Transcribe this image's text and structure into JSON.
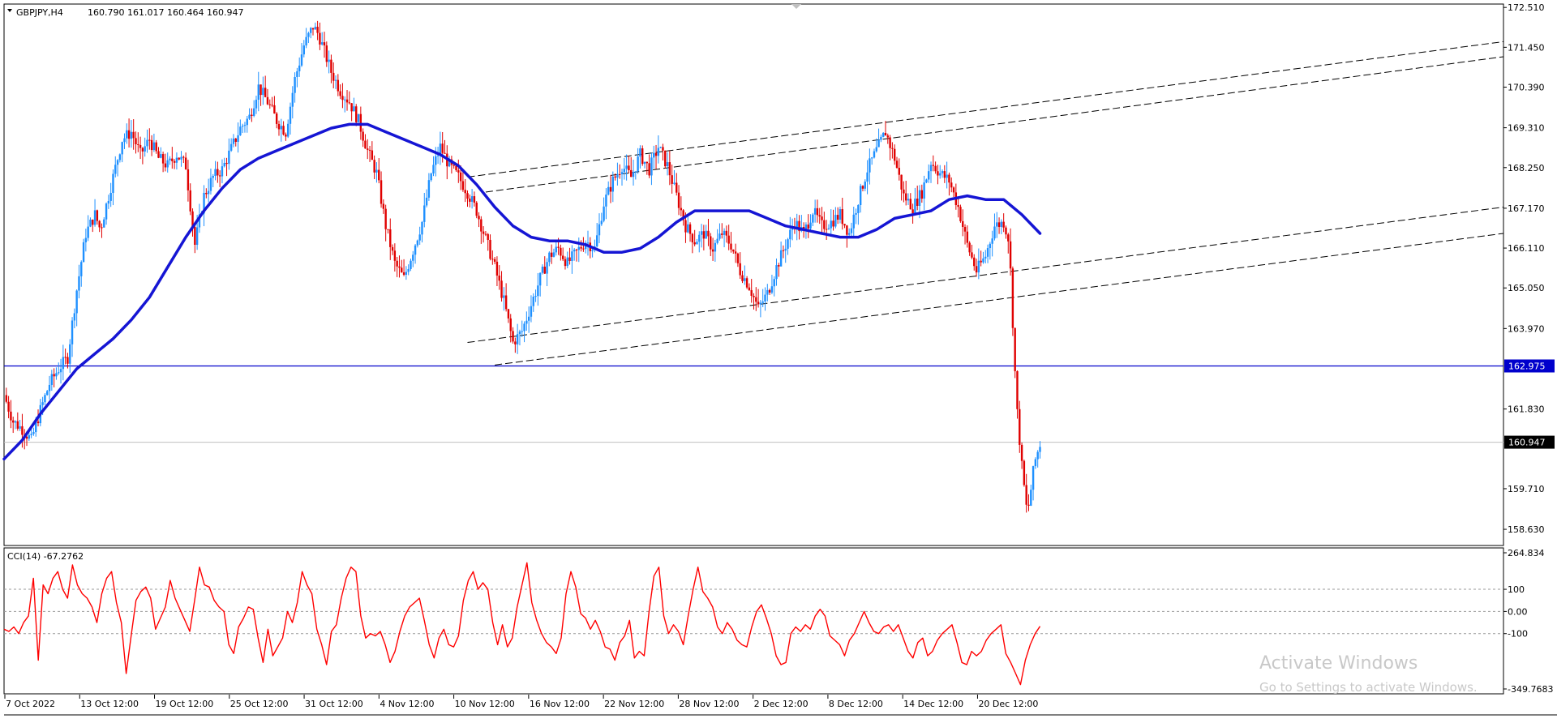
{
  "header": {
    "symbol": "GBPJPY,H4",
    "ohlc": "160.790 161.017 160.464 160.947"
  },
  "indicator": {
    "label": "CCI(14) -67.2762"
  },
  "watermark": {
    "line1": "Activate Windows",
    "line2": "Go to Settings to activate Windows."
  },
  "chart_data": [
    {
      "type": "candlestick",
      "symbol": "GBPJPY",
      "timeframe": "H4",
      "price_axis_ticks": [
        "172.510",
        "171.450",
        "170.390",
        "169.310",
        "168.250",
        "167.170",
        "166.110",
        "165.050",
        "163.970",
        "161.830",
        "159.710",
        "158.630"
      ],
      "ylim": [
        158.2,
        172.6
      ],
      "current_price": 160.947,
      "current_price_label": "160.947",
      "horizontal_level": 162.975,
      "horizontal_level_label": "162.975",
      "time_axis_labels": [
        "7 Oct 2022",
        "13 Oct 12:00",
        "19 Oct 12:00",
        "25 Oct 12:00",
        "31 Oct 12:00",
        "4 Nov 12:00",
        "10 Nov 12:00",
        "16 Nov 12:00",
        "22 Nov 12:00",
        "28 Nov 12:00",
        "2 Dec 12:00",
        "8 Dec 12:00",
        "14 Dec 12:00",
        "20 Dec 12:00"
      ],
      "close_path": [
        [
          0,
          162.2
        ],
        [
          0.5,
          161.5
        ],
        [
          1,
          161.3
        ],
        [
          1.5,
          161.0
        ],
        [
          2,
          161.8
        ],
        [
          2.5,
          162.5
        ],
        [
          3,
          162.9
        ],
        [
          3.5,
          163.2
        ],
        [
          4,
          165.0
        ],
        [
          4.5,
          166.5
        ],
        [
          5,
          167.0
        ],
        [
          5.3,
          166.6
        ],
        [
          6,
          168.0
        ],
        [
          6.5,
          169.0
        ],
        [
          7,
          169.2
        ],
        [
          7.5,
          168.6
        ],
        [
          8,
          169.0
        ],
        [
          8.5,
          168.5
        ],
        [
          9,
          168.3
        ],
        [
          9.5,
          168.6
        ],
        [
          10,
          168.3
        ],
        [
          10.5,
          166.2
        ],
        [
          11,
          167.5
        ],
        [
          11.5,
          168.0
        ],
        [
          12,
          168.2
        ],
        [
          13,
          169.3
        ],
        [
          13.5,
          169.6
        ],
        [
          14,
          170.4
        ],
        [
          14.5,
          170.0
        ],
        [
          15,
          169.5
        ],
        [
          15.5,
          169.2
        ],
        [
          16,
          170.6
        ],
        [
          16.5,
          171.5
        ],
        [
          17,
          172.0
        ],
        [
          17.3,
          171.8
        ],
        [
          18,
          170.8
        ],
        [
          18.5,
          170.3
        ],
        [
          19,
          170.0
        ],
        [
          19.5,
          169.5
        ],
        [
          20,
          168.7
        ],
        [
          20.5,
          168.1
        ],
        [
          21,
          166.7
        ],
        [
          21.5,
          165.7
        ],
        [
          22,
          165.3
        ],
        [
          23,
          166.8
        ],
        [
          23.5,
          168.1
        ],
        [
          24,
          168.8
        ],
        [
          24.5,
          168.3
        ],
        [
          25,
          168.0
        ],
        [
          25.5,
          167.6
        ],
        [
          26,
          167.1
        ],
        [
          27,
          165.6
        ],
        [
          27.5,
          164.7
        ],
        [
          28,
          163.6
        ],
        [
          28.5,
          163.9
        ],
        [
          29,
          164.6
        ],
        [
          29.5,
          165.3
        ],
        [
          30,
          165.9
        ],
        [
          30.5,
          166.1
        ],
        [
          31,
          165.7
        ],
        [
          31.5,
          166.0
        ],
        [
          32,
          166.3
        ],
        [
          32.5,
          166.1
        ],
        [
          33,
          167.3
        ],
        [
          33.5,
          167.9
        ],
        [
          34,
          168.3
        ],
        [
          34.5,
          168.0
        ],
        [
          35,
          168.6
        ],
        [
          35.5,
          168.2
        ],
        [
          36,
          168.8
        ],
        [
          36.5,
          168.3
        ],
        [
          37,
          167.5
        ],
        [
          37.5,
          166.7
        ],
        [
          38,
          166.3
        ],
        [
          38.5,
          166.5
        ],
        [
          39,
          166.1
        ],
        [
          39.5,
          166.5
        ],
        [
          40,
          166.2
        ],
        [
          40.5,
          165.5
        ],
        [
          41,
          165.1
        ],
        [
          41.5,
          164.5
        ],
        [
          42,
          164.9
        ],
        [
          42.5,
          165.6
        ],
        [
          43,
          166.2
        ],
        [
          43.5,
          166.8
        ],
        [
          44,
          166.5
        ],
        [
          44.5,
          167.1
        ],
        [
          45,
          166.7
        ],
        [
          45.5,
          166.8
        ],
        [
          46,
          167.0
        ],
        [
          46.5,
          166.5
        ],
        [
          47,
          167.4
        ],
        [
          47.5,
          168.2
        ],
        [
          48,
          168.7
        ],
        [
          48.5,
          169.2
        ],
        [
          49,
          168.5
        ],
        [
          49.5,
          167.5
        ],
        [
          50,
          167.2
        ],
        [
          50.5,
          167.6
        ],
        [
          51,
          168.4
        ],
        [
          51.5,
          168.1
        ],
        [
          52,
          167.9
        ],
        [
          52.5,
          167.2
        ],
        [
          53,
          166.2
        ],
        [
          53.5,
          165.5
        ],
        [
          54,
          165.9
        ],
        [
          54.5,
          166.7
        ],
        [
          55,
          166.8
        ],
        [
          55.3,
          166.3
        ],
        [
          55.7,
          162.0
        ],
        [
          56,
          160.3
        ],
        [
          56.3,
          159.0
        ],
        [
          56.7,
          160.4
        ],
        [
          57,
          160.9
        ]
      ],
      "moving_average_path": [
        [
          0,
          160.5
        ],
        [
          1,
          161.0
        ],
        [
          2,
          161.7
        ],
        [
          3,
          162.3
        ],
        [
          4,
          162.9
        ],
        [
          5,
          163.3
        ],
        [
          6,
          163.7
        ],
        [
          7,
          164.2
        ],
        [
          8,
          164.8
        ],
        [
          9,
          165.6
        ],
        [
          10,
          166.4
        ],
        [
          11,
          167.1
        ],
        [
          12,
          167.7
        ],
        [
          13,
          168.2
        ],
        [
          14,
          168.5
        ],
        [
          15,
          168.7
        ],
        [
          16,
          168.9
        ],
        [
          17,
          169.1
        ],
        [
          18,
          169.3
        ],
        [
          19,
          169.4
        ],
        [
          20,
          169.4
        ],
        [
          21,
          169.2
        ],
        [
          22,
          169.0
        ],
        [
          23,
          168.8
        ],
        [
          24,
          168.6
        ],
        [
          25,
          168.3
        ],
        [
          26,
          167.8
        ],
        [
          27,
          167.2
        ],
        [
          28,
          166.7
        ],
        [
          29,
          166.4
        ],
        [
          30,
          166.3
        ],
        [
          31,
          166.3
        ],
        [
          32,
          166.2
        ],
        [
          33,
          166.0
        ],
        [
          34,
          166.0
        ],
        [
          35,
          166.1
        ],
        [
          36,
          166.4
        ],
        [
          37,
          166.8
        ],
        [
          38,
          167.1
        ],
        [
          39,
          167.1
        ],
        [
          40,
          167.1
        ],
        [
          41,
          167.1
        ],
        [
          42,
          166.9
        ],
        [
          43,
          166.7
        ],
        [
          44,
          166.6
        ],
        [
          45,
          166.5
        ],
        [
          46,
          166.4
        ],
        [
          47,
          166.4
        ],
        [
          48,
          166.6
        ],
        [
          49,
          166.9
        ],
        [
          50,
          167.0
        ],
        [
          51,
          167.1
        ],
        [
          52,
          167.4
        ],
        [
          53,
          167.5
        ],
        [
          54,
          167.4
        ],
        [
          55,
          167.4
        ],
        [
          56,
          167.0
        ],
        [
          57,
          166.5
        ]
      ],
      "channel_lines": [
        {
          "from": [
            25.5,
            168.0
          ],
          "to": [
            82.5,
            171.6
          ],
          "style": "dashed"
        },
        {
          "from": [
            26.5,
            167.6
          ],
          "to": [
            82.5,
            171.2
          ],
          "style": "dashed"
        },
        {
          "from": [
            25.5,
            163.6
          ],
          "to": [
            82.5,
            167.2
          ],
          "style": "dashed"
        },
        {
          "from": [
            27.0,
            163.0
          ],
          "to": [
            82.5,
            166.5
          ],
          "style": "dashed"
        }
      ],
      "colors": {
        "bull": "#1E90FF",
        "bear": "#E00000",
        "moving_average": "#1515D4",
        "level": "#0000CC",
        "channel": "#000000"
      }
    },
    {
      "type": "line",
      "name": "CCI(14)",
      "value_label": "-67.2762",
      "level_ticks": [
        "264.834",
        "100",
        "0.00",
        "-100",
        "-349.7683"
      ],
      "ylim": [
        -349.7683,
        264.834
      ],
      "levels": [
        100,
        0,
        -100
      ],
      "x_range": [
        0,
        57
      ],
      "values": [
        -80,
        -90,
        -70,
        -100,
        -50,
        -20,
        150,
        -220,
        120,
        80,
        150,
        180,
        100,
        60,
        210,
        120,
        80,
        60,
        20,
        -50,
        80,
        150,
        180,
        40,
        -50,
        -280,
        -110,
        50,
        90,
        110,
        60,
        -80,
        -30,
        20,
        140,
        60,
        10,
        -40,
        -90,
        50,
        200,
        120,
        110,
        50,
        20,
        0,
        -150,
        -190,
        -70,
        -30,
        20,
        10,
        -120,
        -230,
        -80,
        -200,
        -160,
        -120,
        0,
        -50,
        40,
        180,
        120,
        80,
        -80,
        -150,
        -240,
        -90,
        -60,
        60,
        150,
        200,
        180,
        -20,
        -120,
        -100,
        -110,
        -90,
        -150,
        -230,
        -180,
        -90,
        -20,
        20,
        40,
        60,
        -40,
        -150,
        -210,
        -120,
        -80,
        -150,
        -160,
        -110,
        50,
        140,
        180,
        100,
        130,
        100,
        -50,
        -150,
        -60,
        -160,
        -120,
        20,
        120,
        220,
        40,
        -40,
        -100,
        -140,
        -160,
        -190,
        -120,
        80,
        180,
        110,
        -10,
        -30,
        -80,
        -40,
        -90,
        -160,
        -170,
        -220,
        -140,
        -110,
        -40,
        -210,
        -180,
        -200,
        0,
        160,
        200,
        -20,
        -100,
        -60,
        -90,
        -150,
        -20,
        100,
        200,
        90,
        60,
        20,
        -70,
        -100,
        -50,
        -80,
        -130,
        -150,
        -160,
        -70,
        0,
        30,
        -30,
        -100,
        -200,
        -240,
        -230,
        -100,
        -70,
        -90,
        -60,
        -80,
        -20,
        10,
        -20,
        -110,
        -130,
        -150,
        -200,
        -130,
        -100,
        -50,
        0,
        -50,
        -90,
        -100,
        -70,
        -60,
        -90,
        -60,
        -120,
        -180,
        -210,
        -140,
        -120,
        -200,
        -180,
        -130,
        -100,
        -80,
        -60,
        -140,
        -230,
        -240,
        -180,
        -200,
        -180,
        -130,
        -100,
        -80,
        -60,
        -190,
        -230,
        -280,
        -330,
        -220,
        -150,
        -100,
        -67
      ],
      "colors": {
        "line": "#FF0000",
        "levels": "#999999"
      }
    }
  ]
}
